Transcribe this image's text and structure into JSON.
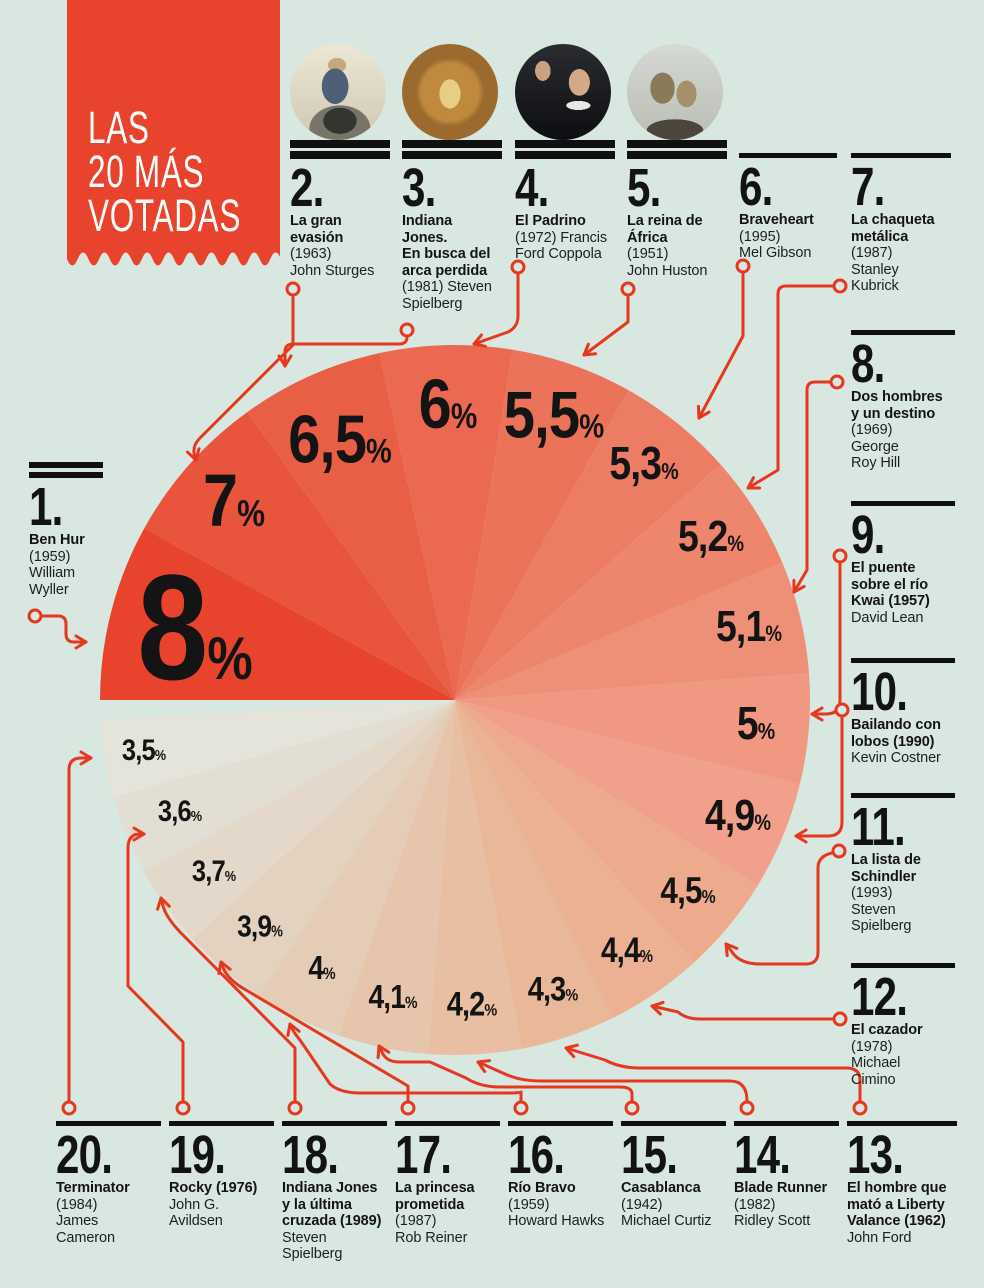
{
  "background_color": "#d8e7df",
  "accent_red": "#e8432c",
  "connector_red": "#e6371f",
  "ink": "#161616",
  "banner": {
    "lines": [
      "LAS",
      "20 MÁS",
      "VOTADAS"
    ]
  },
  "chart_data": {
    "type": "pie",
    "title": "LAS 20 MÁS VOTADAS",
    "unit": "%",
    "start_angle_deg": 180,
    "direction": "clockwise",
    "slices": [
      {
        "num": "1.",
        "movie_bold": "Ben Hur",
        "credits": "(1959)\nWilliam\nWyller",
        "label": "8%",
        "value": 8,
        "color": "#e7432d",
        "photo": false
      },
      {
        "num": "2.",
        "movie_bold": "La gran\nevasión",
        "credits": "(1963)\nJohn Sturges",
        "label": "7%",
        "value": 7,
        "color": "#e8553c",
        "photo": true
      },
      {
        "num": "3.",
        "movie_bold": "Indiana\nJones.\nEn busca del\narca perdida",
        "credits": "(1981) Steven\nSpielberg",
        "label": "6,5%",
        "value": 6.5,
        "color": "#e95f46",
        "photo": true
      },
      {
        "num": "4.",
        "movie_bold": "El Padrino",
        "credits": "(1972) Francis\nFord Coppola",
        "label": "6%",
        "value": 6,
        "color": "#ea6950",
        "photo": true
      },
      {
        "num": "5.",
        "movie_bold": "La reina de\nÁfrica",
        "credits": "(1951)\nJohn Huston",
        "label": "5,5%",
        "value": 5.5,
        "color": "#eb735a",
        "photo": true
      },
      {
        "num": "6.",
        "movie_bold": "Braveheart",
        "credits": "(1995)\nMel Gibson",
        "label": "5,3%",
        "value": 5.3,
        "color": "#ec7d64",
        "photo": false
      },
      {
        "num": "7.",
        "movie_bold": "La chaqueta\nmetálica",
        "credits": "(1987)\nStanley\nKubrick",
        "label": "5,2%",
        "value": 5.2,
        "color": "#ed866d",
        "photo": false
      },
      {
        "num": "8.",
        "movie_bold": "Dos hombres\ny un destino",
        "credits": "(1969)\nGeorge\nRoy Hill",
        "label": "5,1%",
        "value": 5.1,
        "color": "#ee8f77",
        "photo": false
      },
      {
        "num": "9.",
        "movie_bold": "El puente\nsobre el río\nKwai (1957)",
        "credits": "David Lean",
        "label": "5%",
        "value": 5,
        "color": "#f09881",
        "photo": false
      },
      {
        "num": "10.",
        "movie_bold": "Bailando con\nlobos (1990)",
        "credits": "Kevin Costner",
        "label": "4,9%",
        "value": 4.9,
        "color": "#f0a08b",
        "photo": false
      },
      {
        "num": "11.",
        "movie_bold": "La lista de\nSchindler",
        "credits": "(1993)\nSteven\nSpielberg",
        "label": "4,5%",
        "value": 4.5,
        "color": "#edaa8c",
        "photo": false
      },
      {
        "num": "12.",
        "movie_bold": "El cazador",
        "credits": "(1978)\nMichael\nCimino",
        "label": "4,4%",
        "value": 4.4,
        "color": "#ebb192",
        "photo": false
      },
      {
        "num": "13.",
        "movie_bold": "El hombre que\nmató a Liberty\nValance (1962)",
        "credits": "John Ford",
        "label": "4,3%",
        "value": 4.3,
        "color": "#e9b898",
        "photo": false
      },
      {
        "num": "14.",
        "movie_bold": "Blade Runner",
        "credits": "(1982)\nRidley Scott",
        "label": "4,2%",
        "value": 4.2,
        "color": "#e8bfa2",
        "photo": false
      },
      {
        "num": "15.",
        "movie_bold": "Casablanca",
        "credits": "(1942)\nMichael Curtiz",
        "label": "4,1%",
        "value": 4.1,
        "color": "#e6c5ac",
        "photo": false
      },
      {
        "num": "16.",
        "movie_bold": "Río Bravo",
        "credits": "(1959)\nHoward Hawks",
        "label": "4%",
        "value": 4,
        "color": "#e5ccb6",
        "photo": false
      },
      {
        "num": "17.",
        "movie_bold": "La princesa\nprometida",
        "credits": "(1987)\nRob Reiner",
        "label": "3,9%",
        "value": 3.9,
        "color": "#e4d2c0",
        "photo": false
      },
      {
        "num": "18.",
        "movie_bold": "Indiana Jones\ny la última\ncruzada (1989)",
        "credits": "Steven\nSpielberg",
        "label": "3,7%",
        "value": 3.7,
        "color": "#e3d8ca",
        "photo": false
      },
      {
        "num": "19.",
        "movie_bold": "Rocky (1976)",
        "credits": "John G.\nAvildsen",
        "label": "3,6%",
        "value": 3.6,
        "color": "#e3ded3",
        "photo": false
      },
      {
        "num": "20.",
        "movie_bold": "Terminator",
        "credits": "(1984)\nJames\nCameron",
        "label": "3,5%",
        "value": 3.5,
        "color": "#e4e4da",
        "photo": false
      }
    ]
  }
}
